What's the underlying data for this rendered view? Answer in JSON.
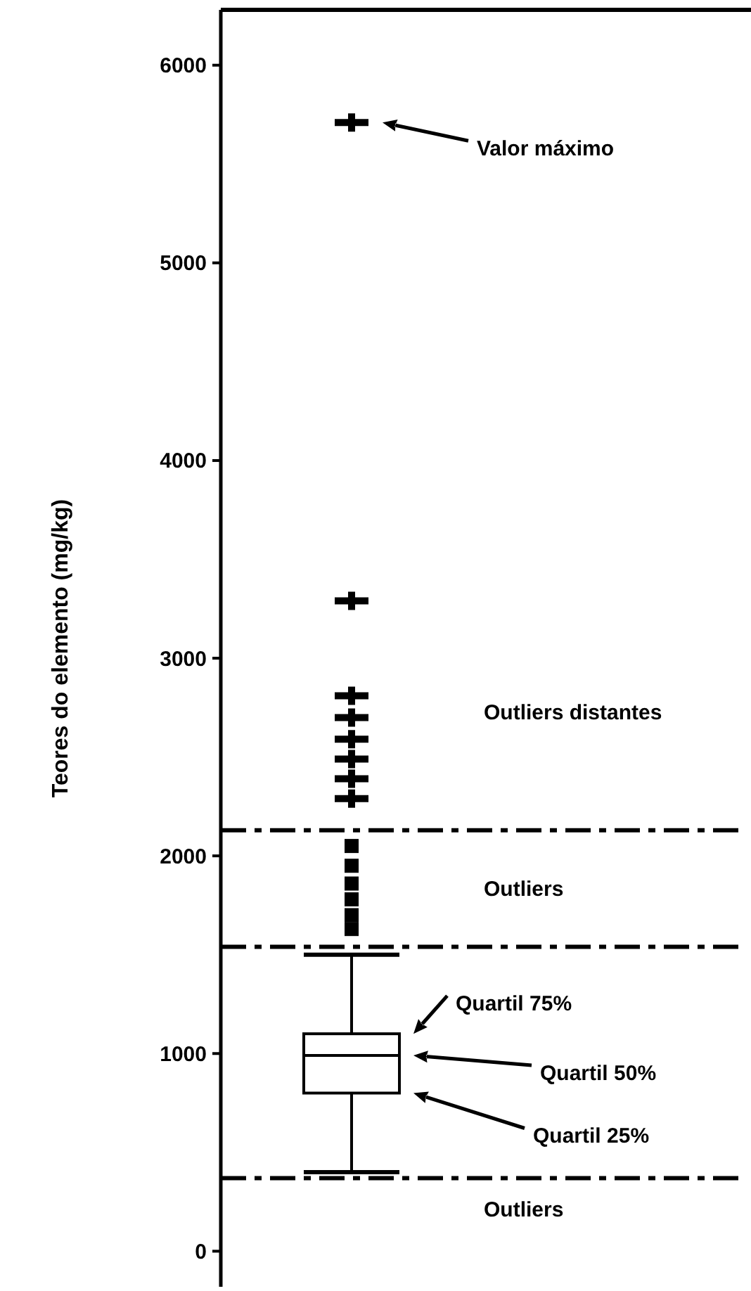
{
  "chart_data": {
    "type": "box",
    "ylabel": "Teores do elemento (mg/kg)",
    "categories": [
      null
    ],
    "boxes": [
      {
        "low": 400,
        "q1": 800,
        "median": 990,
        "q3": 1100,
        "high": 1500
      }
    ],
    "series": [
      {
        "type": "scatter",
        "marker": "square",
        "color": "#000000",
        "x": [
          null,
          null,
          null,
          null,
          null,
          null
        ],
        "values": [
          1630,
          1700,
          1780,
          1860,
          1950,
          2050
        ]
      },
      {
        "type": "scatter",
        "marker": "cross",
        "color": "#000000",
        "x": [
          null,
          null,
          null,
          null,
          null,
          null,
          null,
          null
        ],
        "values": [
          2290,
          2390,
          2490,
          2590,
          2700,
          2810,
          3290,
          5710
        ]
      }
    ],
    "ylim": [
      -180,
      6280
    ],
    "yticks": [
      0,
      1000,
      2000,
      3000,
      4000,
      5000,
      6000
    ],
    "grid": false,
    "ref_lines": [
      {
        "axis": "y",
        "value": 2130,
        "line_style": "dashed"
      },
      {
        "axis": "y",
        "value": 1540,
        "line_style": "dashed"
      },
      {
        "axis": "y",
        "value": 370,
        "line_style": "dashed"
      }
    ],
    "annotations": [
      "Valor máximo",
      "Outliers distantes",
      "Outliers",
      "Quartil 75%",
      "Quartil 50%",
      "Quartil 25%",
      "Outliers"
    ]
  }
}
